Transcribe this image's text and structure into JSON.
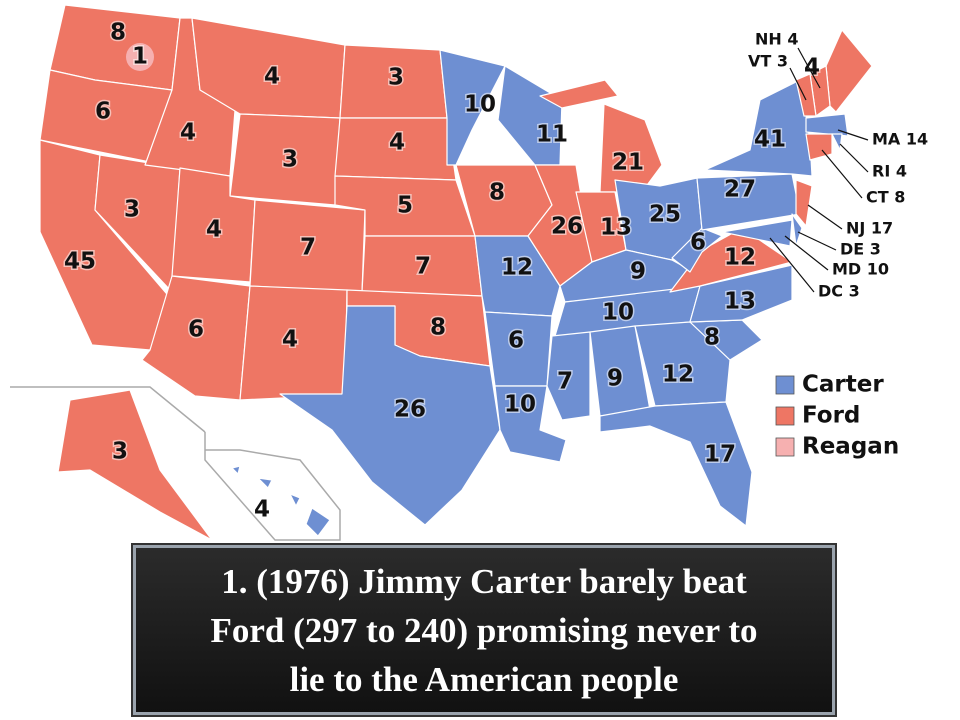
{
  "map": {
    "states": [
      {
        "label": 8,
        "party": "Ford"
      },
      {
        "label": 1,
        "party": "Reagan"
      },
      {
        "label": 6,
        "party": "Ford"
      },
      {
        "label": 45,
        "party": "Ford"
      },
      {
        "label": 3,
        "party": "Ford"
      },
      {
        "label": 4,
        "party": "Ford"
      },
      {
        "label": 4,
        "party": "Ford"
      },
      {
        "label": 3,
        "party": "Ford"
      },
      {
        "label": 4,
        "party": "Ford"
      },
      {
        "label": 7,
        "party": "Ford"
      },
      {
        "label": 6,
        "party": "Ford"
      },
      {
        "label": 4,
        "party": "Ford"
      },
      {
        "label": 3,
        "party": "Ford"
      },
      {
        "label": 4,
        "party": "Ford"
      },
      {
        "label": 5,
        "party": "Ford"
      },
      {
        "label": 7,
        "party": "Ford"
      },
      {
        "label": 8,
        "party": "Ford"
      },
      {
        "label": 26,
        "party": "Carter"
      },
      {
        "label": 10,
        "party": "Carter"
      },
      {
        "label": 8,
        "party": "Ford"
      },
      {
        "label": 12,
        "party": "Carter"
      },
      {
        "label": 6,
        "party": "Carter"
      },
      {
        "label": 10,
        "party": "Carter"
      },
      {
        "label": 11,
        "party": "Carter"
      },
      {
        "label": 26,
        "party": "Ford"
      },
      {
        "label": 21,
        "party": "Ford"
      },
      {
        "label": 13,
        "party": "Ford"
      },
      {
        "label": 25,
        "party": "Carter"
      },
      {
        "label": 9,
        "party": "Carter"
      },
      {
        "label": 10,
        "party": "Carter"
      },
      {
        "label": 7,
        "party": "Carter"
      },
      {
        "label": 9,
        "party": "Carter"
      },
      {
        "label": 12,
        "party": "Carter"
      },
      {
        "label": 17,
        "party": "Carter"
      },
      {
        "label": 8,
        "party": "Carter"
      },
      {
        "label": 13,
        "party": "Carter"
      },
      {
        "label": 12,
        "party": "Ford"
      },
      {
        "label": 6,
        "party": "Carter"
      },
      {
        "label": 27,
        "party": "Carter"
      },
      {
        "label": 41,
        "party": "Carter"
      },
      {
        "label": 4,
        "party": "Ford"
      },
      {
        "label": 3,
        "party": "Ford"
      },
      {
        "label": 4,
        "party": "Carter"
      },
      {
        "label": "NH 4",
        "party": "Ford"
      },
      {
        "label": "VT 3",
        "party": "Ford"
      },
      {
        "label": "MA 14",
        "party": "Carter"
      },
      {
        "label": "RI 4",
        "party": "Carter"
      },
      {
        "label": "CT 8",
        "party": "Ford"
      },
      {
        "label": "NJ 17",
        "party": "Ford"
      },
      {
        "label": "DE 3",
        "party": "Carter"
      },
      {
        "label": "MD 10",
        "party": "Carter"
      },
      {
        "label": "DC 3",
        "party": "Carter"
      }
    ],
    "legend": [
      {
        "name": "Carter",
        "color": "#6e8fd2"
      },
      {
        "name": "Ford",
        "color": "#ee7664"
      },
      {
        "name": "Reagan",
        "color": "#f6b0b0"
      }
    ]
  },
  "caption": {
    "lines": [
      "1.  (1976) Jimmy Carter barely beat",
      "Ford (297 to 240) promising never to",
      "lie to the American people"
    ]
  }
}
